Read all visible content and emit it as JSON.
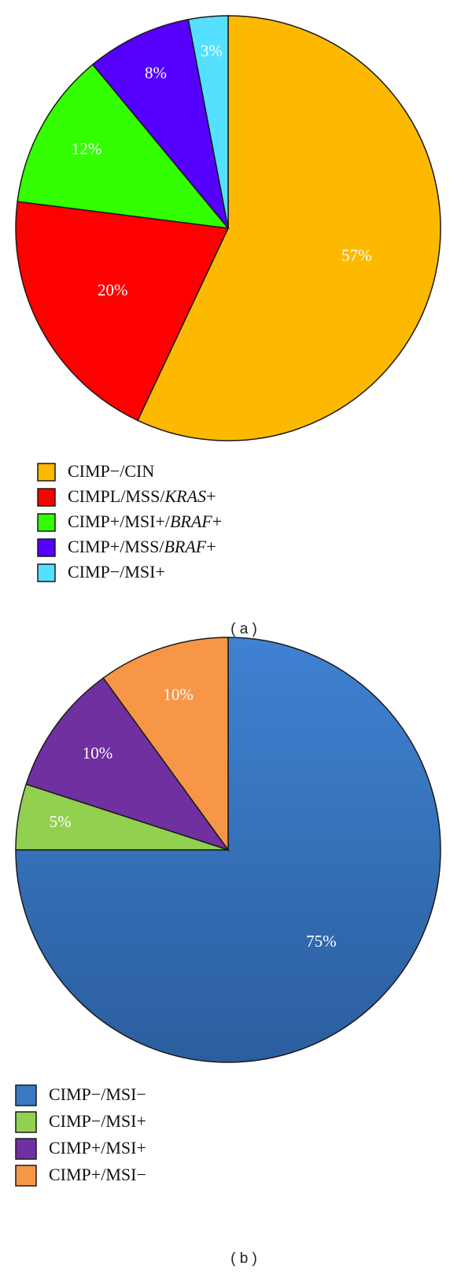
{
  "chart_data": [
    {
      "type": "pie",
      "panel_label": "( a )",
      "slices": [
        {
          "name": "CIMP−/CIN",
          "name_parts": [
            {
              "t": "CIMP−/CIN",
              "i": false
            }
          ],
          "value": 57,
          "label": "57%",
          "color": "#fdb900"
        },
        {
          "name": "CIMPL/MSS/KRAS+",
          "name_parts": [
            {
              "t": "CIMPL/MSS/",
              "i": false
            },
            {
              "t": "KRAS",
              "i": true
            },
            {
              "t": "+",
              "i": false
            }
          ],
          "value": 20,
          "label": "20%",
          "color": "#ff0000"
        },
        {
          "name": "CIMP+/MSI+/BRAF+",
          "name_parts": [
            {
              "t": "CIMP+/MSI+/",
              "i": false
            },
            {
              "t": "BRAF",
              "i": true
            },
            {
              "t": "+",
              "i": false
            }
          ],
          "value": 12,
          "label": "12%",
          "color": "#33ff00"
        },
        {
          "name": "CIMP+/MSS/BRAF+",
          "name_parts": [
            {
              "t": "CIMP+/MSS/",
              "i": false
            },
            {
              "t": "BRAF",
              "i": true
            },
            {
              "t": "+",
              "i": false
            }
          ],
          "value": 8,
          "label": "8%",
          "color": "#5500ff"
        },
        {
          "name": "CIMP−/MSI+",
          "name_parts": [
            {
              "t": "CIMP−/MSI+",
              "i": false
            }
          ],
          "value": 3,
          "label": "3%",
          "color": "#55e0ff"
        }
      ],
      "legend_position": "below"
    },
    {
      "type": "pie",
      "panel_label": "( b )",
      "slices": [
        {
          "name": "CIMP−/MSI−",
          "name_parts": [
            {
              "t": "CIMP−/MSI−",
              "i": false
            }
          ],
          "value": 75,
          "label": "75%",
          "color": "#3a78c4"
        },
        {
          "name": "CIMP−/MSI+",
          "name_parts": [
            {
              "t": "CIMP−/MSI+",
              "i": false
            }
          ],
          "value": 5,
          "label": "5%",
          "color": "#92d050"
        },
        {
          "name": "CIMP+/MSI+",
          "name_parts": [
            {
              "t": "CIMP+/MSI+",
              "i": false
            }
          ],
          "value": 10,
          "label": "10%",
          "color": "#7030a0"
        },
        {
          "name": "CIMP+/MSI−",
          "name_parts": [
            {
              "t": "CIMP+/MSI−",
              "i": false
            }
          ],
          "value": 10,
          "label": "10%",
          "color": "#f79646"
        }
      ],
      "legend_position": "below"
    }
  ]
}
